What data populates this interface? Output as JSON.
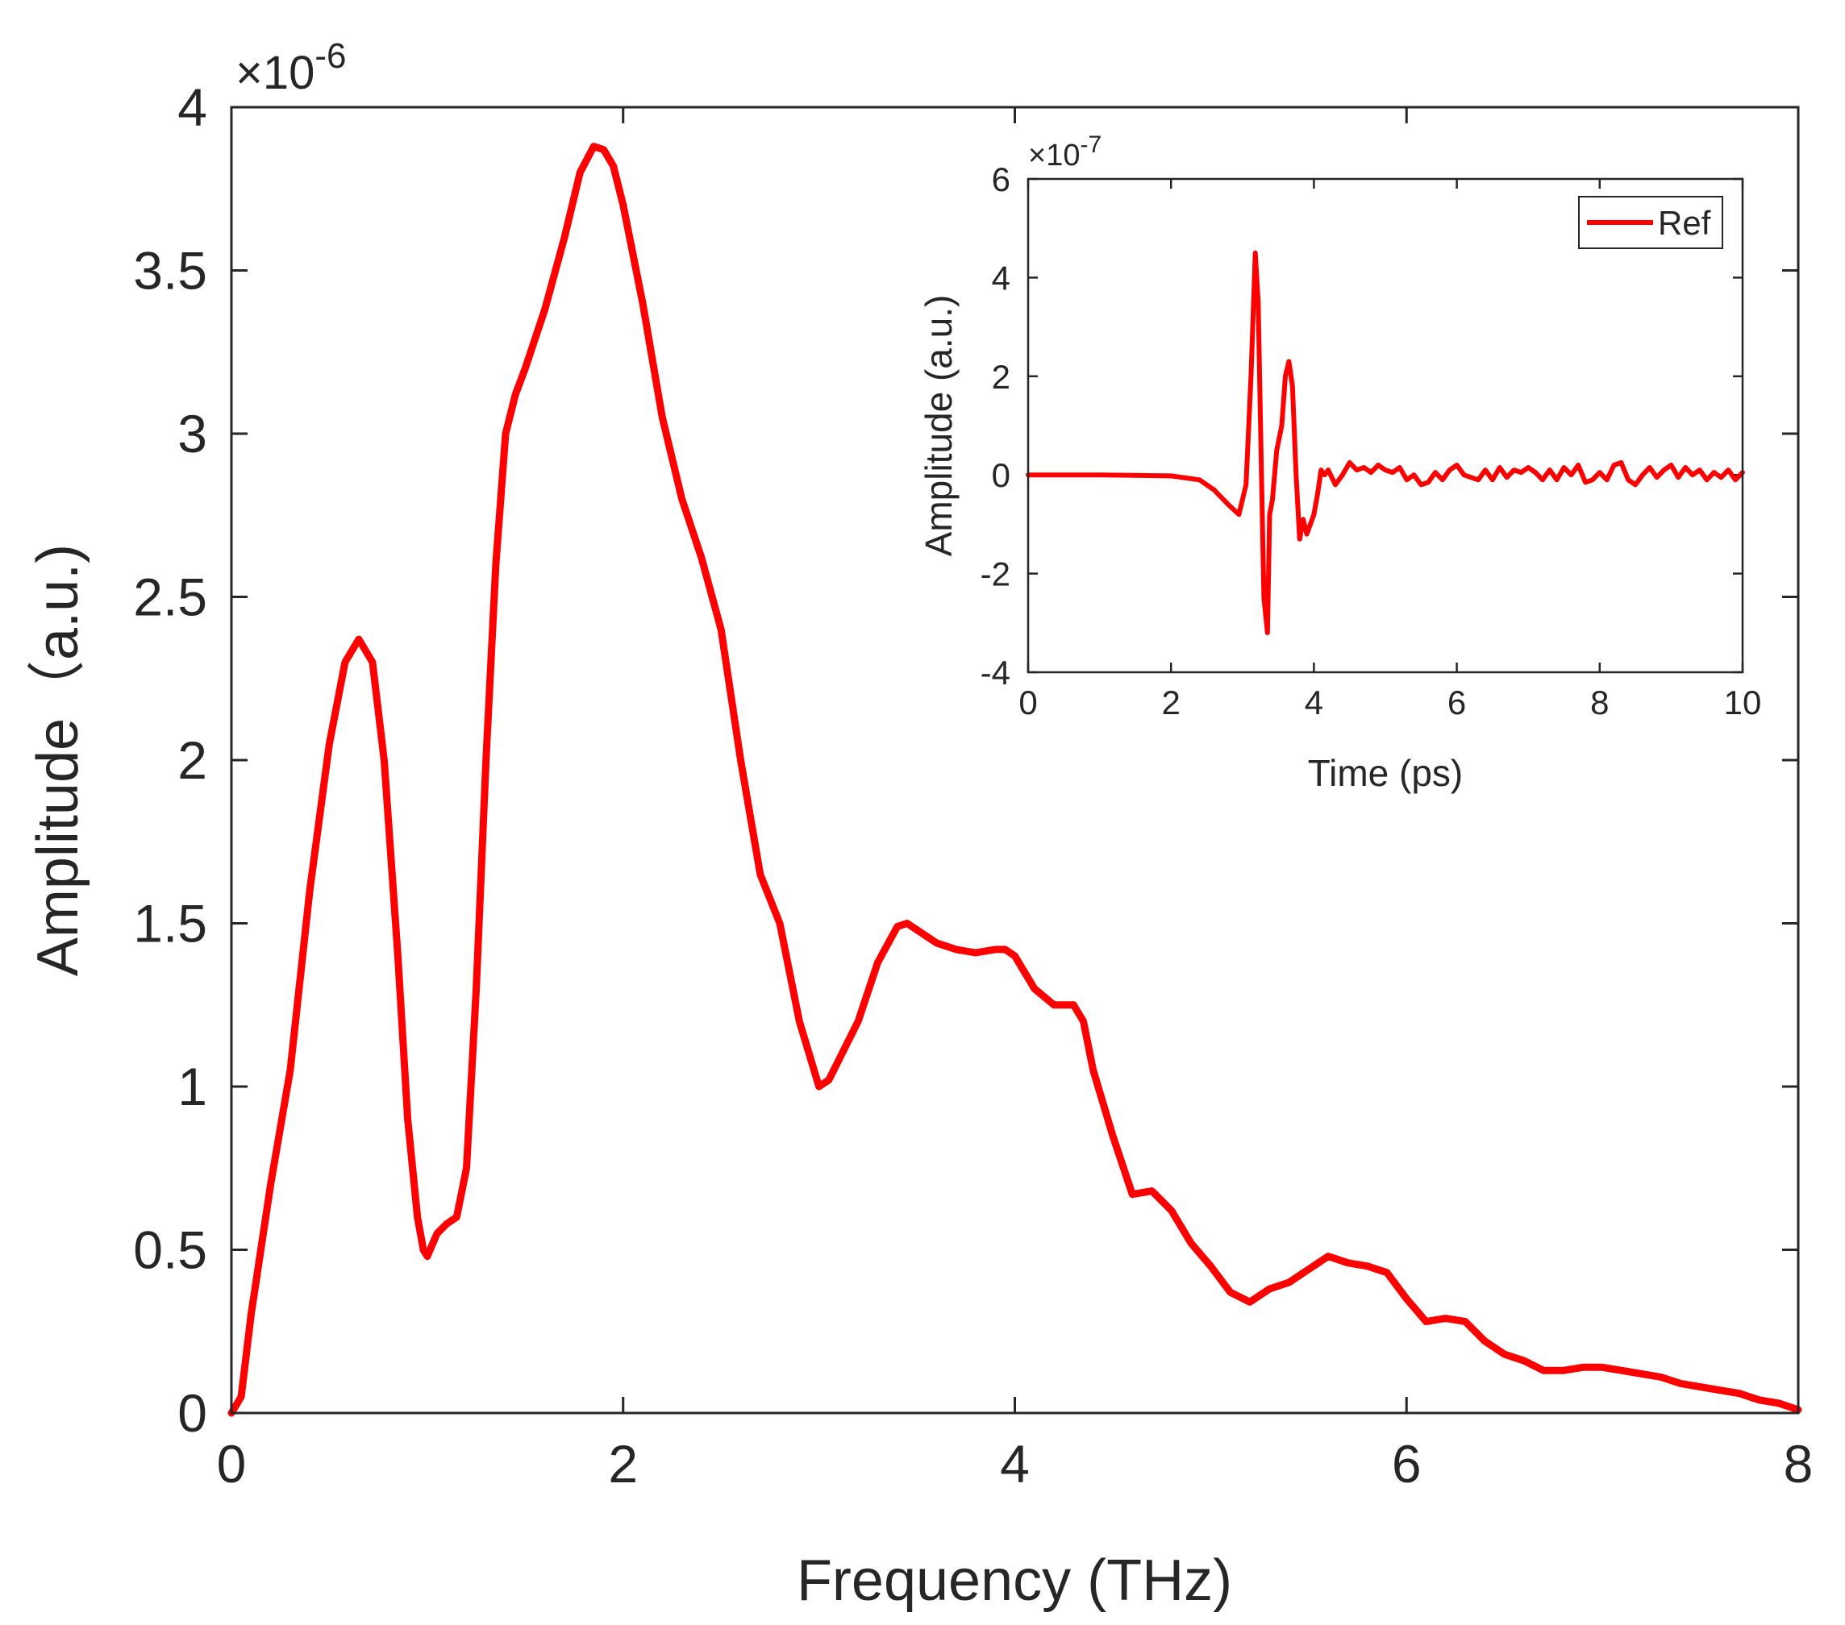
{
  "chart_data": [
    {
      "name": "main",
      "type": "line",
      "title": "",
      "xlabel": "Frequency (THz)",
      "ylabel": "Amplitude（a.u.)",
      "exponent_label": "×10",
      "exponent_power": "-6",
      "xlim": [
        0,
        8
      ],
      "ylim": [
        0,
        4
      ],
      "xticks": [
        0,
        2,
        4,
        6,
        8
      ],
      "xtick_labels": [
        "0",
        "2",
        "4",
        "6",
        "8"
      ],
      "yticks": [
        0,
        0.5,
        1,
        1.5,
        2,
        2.5,
        3,
        3.5,
        4
      ],
      "ytick_labels": [
        "0",
        "0.5",
        "1",
        "1.5",
        "2",
        "2.5",
        "3",
        "3.5",
        "4"
      ],
      "grid": false,
      "color": "#ff0000",
      "series": [
        {
          "name": "Amplitude",
          "x": [
            0,
            0.05,
            0.1,
            0.2,
            0.3,
            0.4,
            0.5,
            0.58,
            0.65,
            0.72,
            0.78,
            0.85,
            0.9,
            0.95,
            0.98,
            1.0,
            1.05,
            1.1,
            1.15,
            1.2,
            1.25,
            1.3,
            1.35,
            1.4,
            1.45,
            1.5,
            1.6,
            1.7,
            1.78,
            1.85,
            1.9,
            1.95,
            2.0,
            2.1,
            2.2,
            2.3,
            2.4,
            2.5,
            2.6,
            2.7,
            2.8,
            2.9,
            3.0,
            3.05,
            3.1,
            3.2,
            3.3,
            3.4,
            3.45,
            3.5,
            3.6,
            3.7,
            3.8,
            3.9,
            3.95,
            4.0,
            4.1,
            4.2,
            4.3,
            4.35,
            4.4,
            4.5,
            4.6,
            4.7,
            4.8,
            4.9,
            5.0,
            5.1,
            5.2,
            5.3,
            5.4,
            5.5,
            5.6,
            5.7,
            5.8,
            5.9,
            6.0,
            6.1,
            6.2,
            6.3,
            6.4,
            6.5,
            6.6,
            6.7,
            6.8,
            6.9,
            7.0,
            7.1,
            7.2,
            7.3,
            7.4,
            7.5,
            7.6,
            7.7,
            7.8,
            7.9,
            8.0
          ],
          "y": [
            0,
            0.05,
            0.3,
            0.7,
            1.05,
            1.6,
            2.05,
            2.3,
            2.37,
            2.3,
            2.0,
            1.4,
            0.9,
            0.6,
            0.5,
            0.48,
            0.55,
            0.58,
            0.6,
            0.75,
            1.3,
            2.0,
            2.6,
            3.0,
            3.12,
            3.2,
            3.38,
            3.6,
            3.8,
            3.88,
            3.87,
            3.82,
            3.7,
            3.4,
            3.05,
            2.8,
            2.62,
            2.4,
            2.0,
            1.65,
            1.5,
            1.2,
            1.0,
            1.02,
            1.08,
            1.2,
            1.38,
            1.49,
            1.5,
            1.48,
            1.44,
            1.42,
            1.41,
            1.42,
            1.42,
            1.4,
            1.3,
            1.25,
            1.25,
            1.2,
            1.05,
            0.85,
            0.67,
            0.68,
            0.62,
            0.52,
            0.45,
            0.37,
            0.34,
            0.38,
            0.4,
            0.44,
            0.48,
            0.46,
            0.45,
            0.43,
            0.35,
            0.28,
            0.29,
            0.28,
            0.22,
            0.18,
            0.16,
            0.13,
            0.13,
            0.14,
            0.14,
            0.13,
            0.12,
            0.11,
            0.09,
            0.08,
            0.07,
            0.06,
            0.04,
            0.03,
            0.01
          ]
        }
      ]
    },
    {
      "name": "inset",
      "type": "line",
      "title": "",
      "xlabel": "Time (ps)",
      "ylabel": "Amplitude (a.u.)",
      "exponent_label": "×10",
      "exponent_power": "-7",
      "xlim": [
        0,
        10
      ],
      "ylim": [
        -4,
        6
      ],
      "xticks": [
        0,
        2,
        4,
        6,
        8,
        10
      ],
      "xtick_labels": [
        "0",
        "2",
        "4",
        "6",
        "8",
        "10"
      ],
      "yticks": [
        -4,
        -2,
        0,
        2,
        4,
        6
      ],
      "ytick_labels": [
        "-4",
        "-2",
        "0",
        "2",
        "4",
        "6"
      ],
      "grid": false,
      "color": "#ff0000",
      "legend": {
        "entries": [
          "Ref"
        ],
        "position": "top-right"
      },
      "series": [
        {
          "name": "Ref",
          "x": [
            0,
            1.0,
            2.0,
            2.4,
            2.6,
            2.8,
            2.95,
            3.05,
            3.12,
            3.18,
            3.22,
            3.26,
            3.3,
            3.35,
            3.38,
            3.42,
            3.48,
            3.55,
            3.6,
            3.65,
            3.7,
            3.75,
            3.8,
            3.85,
            3.9,
            3.95,
            4.0,
            4.05,
            4.1,
            4.15,
            4.2,
            4.3,
            4.4,
            4.5,
            4.6,
            4.7,
            4.8,
            4.9,
            5.0,
            5.1,
            5.2,
            5.3,
            5.4,
            5.5,
            5.6,
            5.7,
            5.8,
            5.9,
            6.0,
            6.1,
            6.2,
            6.3,
            6.4,
            6.5,
            6.6,
            6.7,
            6.8,
            6.9,
            7.0,
            7.1,
            7.2,
            7.3,
            7.4,
            7.5,
            7.6,
            7.7,
            7.8,
            7.9,
            8.0,
            8.1,
            8.2,
            8.3,
            8.4,
            8.5,
            8.6,
            8.7,
            8.8,
            8.9,
            9.0,
            9.1,
            9.2,
            9.3,
            9.4,
            9.5,
            9.6,
            9.7,
            9.8,
            9.9,
            10.0
          ],
          "y": [
            0,
            0,
            -0.02,
            -0.1,
            -0.3,
            -0.6,
            -0.8,
            -0.2,
            2.0,
            4.5,
            3.5,
            0.5,
            -2.5,
            -3.2,
            -0.8,
            -0.5,
            0.5,
            1.0,
            2.0,
            2.3,
            1.8,
            0,
            -1.3,
            -0.9,
            -1.2,
            -1.0,
            -0.8,
            -0.4,
            0.1,
            0.0,
            0.1,
            -0.2,
            0.0,
            0.25,
            0.1,
            0.15,
            0.05,
            0.2,
            0.1,
            0.05,
            0.15,
            -0.1,
            0.0,
            -0.2,
            -0.15,
            0.05,
            -0.1,
            0.1,
            0.2,
            0.0,
            -0.05,
            -0.1,
            0.1,
            -0.1,
            0.15,
            -0.05,
            0.1,
            0.05,
            0.15,
            0.05,
            -0.1,
            0.1,
            -0.1,
            0.15,
            0.0,
            0.2,
            -0.15,
            -0.1,
            0.05,
            -0.1,
            0.2,
            0.25,
            -0.1,
            -0.2,
            0.0,
            0.15,
            -0.05,
            0.1,
            0.2,
            -0.05,
            0.15,
            0.0,
            0.1,
            -0.1,
            0.05,
            -0.05,
            0.1,
            -0.1,
            0.05
          ]
        }
      ]
    }
  ]
}
